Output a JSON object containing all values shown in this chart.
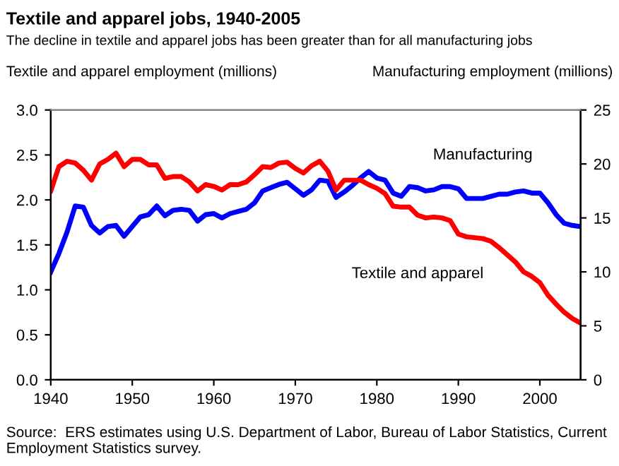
{
  "chart_data": {
    "type": "line",
    "title": "Textile and apparel jobs, 1940-2005",
    "subtitle": "The decline in textile and apparel jobs has been greater than for all manufacturing jobs",
    "ylabel": "Textile and apparel employment (millions)",
    "y2label": "Manufacturing employment (millions)",
    "x": [
      1940,
      1941,
      1942,
      1943,
      1944,
      1945,
      1946,
      1947,
      1948,
      1949,
      1950,
      1951,
      1952,
      1953,
      1954,
      1955,
      1956,
      1957,
      1958,
      1959,
      1960,
      1961,
      1962,
      1963,
      1964,
      1965,
      1966,
      1967,
      1968,
      1969,
      1970,
      1971,
      1972,
      1973,
      1974,
      1975,
      1976,
      1977,
      1978,
      1979,
      1980,
      1981,
      1982,
      1983,
      1984,
      1985,
      1986,
      1987,
      1988,
      1989,
      1990,
      1991,
      1992,
      1993,
      1994,
      1995,
      1996,
      1997,
      1998,
      1999,
      2000,
      2001,
      2002,
      2003,
      2004,
      2005
    ],
    "series": [
      {
        "name": "Textile and apparel",
        "color": "#ff0000",
        "values": [
          2.1,
          2.37,
          2.43,
          2.41,
          2.33,
          2.22,
          2.4,
          2.45,
          2.52,
          2.37,
          2.45,
          2.45,
          2.39,
          2.39,
          2.24,
          2.26,
          2.26,
          2.2,
          2.1,
          2.17,
          2.15,
          2.11,
          2.17,
          2.17,
          2.2,
          2.28,
          2.37,
          2.36,
          2.41,
          2.42,
          2.35,
          2.3,
          2.38,
          2.43,
          2.32,
          2.11,
          2.22,
          2.22,
          2.22,
          2.17,
          2.13,
          2.07,
          1.93,
          1.92,
          1.92,
          1.83,
          1.8,
          1.81,
          1.8,
          1.77,
          1.62,
          1.59,
          1.58,
          1.57,
          1.54,
          1.47,
          1.39,
          1.31,
          1.2,
          1.15,
          1.08,
          0.94,
          0.84,
          0.75,
          0.68,
          0.63
        ]
      },
      {
        "name": "Manufacturing",
        "color": "#0000ff",
        "axis": "y2",
        "values": [
          10.0,
          11.7,
          13.7,
          16.1,
          16.0,
          14.3,
          13.6,
          14.2,
          14.3,
          13.3,
          14.2,
          15.1,
          15.3,
          16.1,
          15.2,
          15.7,
          15.8,
          15.7,
          14.7,
          15.3,
          15.4,
          15.0,
          15.4,
          15.6,
          15.8,
          16.4,
          17.5,
          17.8,
          18.1,
          18.3,
          17.7,
          17.1,
          17.6,
          18.5,
          18.4,
          16.9,
          17.4,
          18.0,
          18.7,
          19.3,
          18.7,
          18.5,
          17.3,
          17.0,
          17.9,
          17.8,
          17.5,
          17.6,
          17.9,
          17.9,
          17.7,
          16.8,
          16.8,
          16.8,
          17.0,
          17.2,
          17.2,
          17.4,
          17.5,
          17.3,
          17.3,
          16.4,
          15.3,
          14.5,
          14.3,
          14.2
        ]
      }
    ],
    "xlim": [
      1940,
      2005
    ],
    "xticks": [
      1940,
      1950,
      1960,
      1970,
      1980,
      1990,
      2000
    ],
    "ylim": [
      0,
      3.0
    ],
    "yticks": [
      {
        "value": 0,
        "label": "0.0"
      },
      {
        "value": 0.5,
        "label": "0.5"
      },
      {
        "value": 1.0,
        "label": "1.0"
      },
      {
        "value": 1.5,
        "label": "1.5"
      },
      {
        "value": 2.0,
        "label": "2.0"
      },
      {
        "value": 2.5,
        "label": "2.5"
      },
      {
        "value": 3.0,
        "label": "3.0"
      }
    ],
    "y2lim": [
      0,
      25
    ],
    "y2ticks": [
      0,
      5,
      10,
      15,
      20,
      25
    ],
    "grid": false,
    "legend": false,
    "annotations": [
      "Source:  ERS estimates using U.S. Department of Labor, Bureau of Labor Statistics, Current Employment Statistics survey."
    ]
  }
}
